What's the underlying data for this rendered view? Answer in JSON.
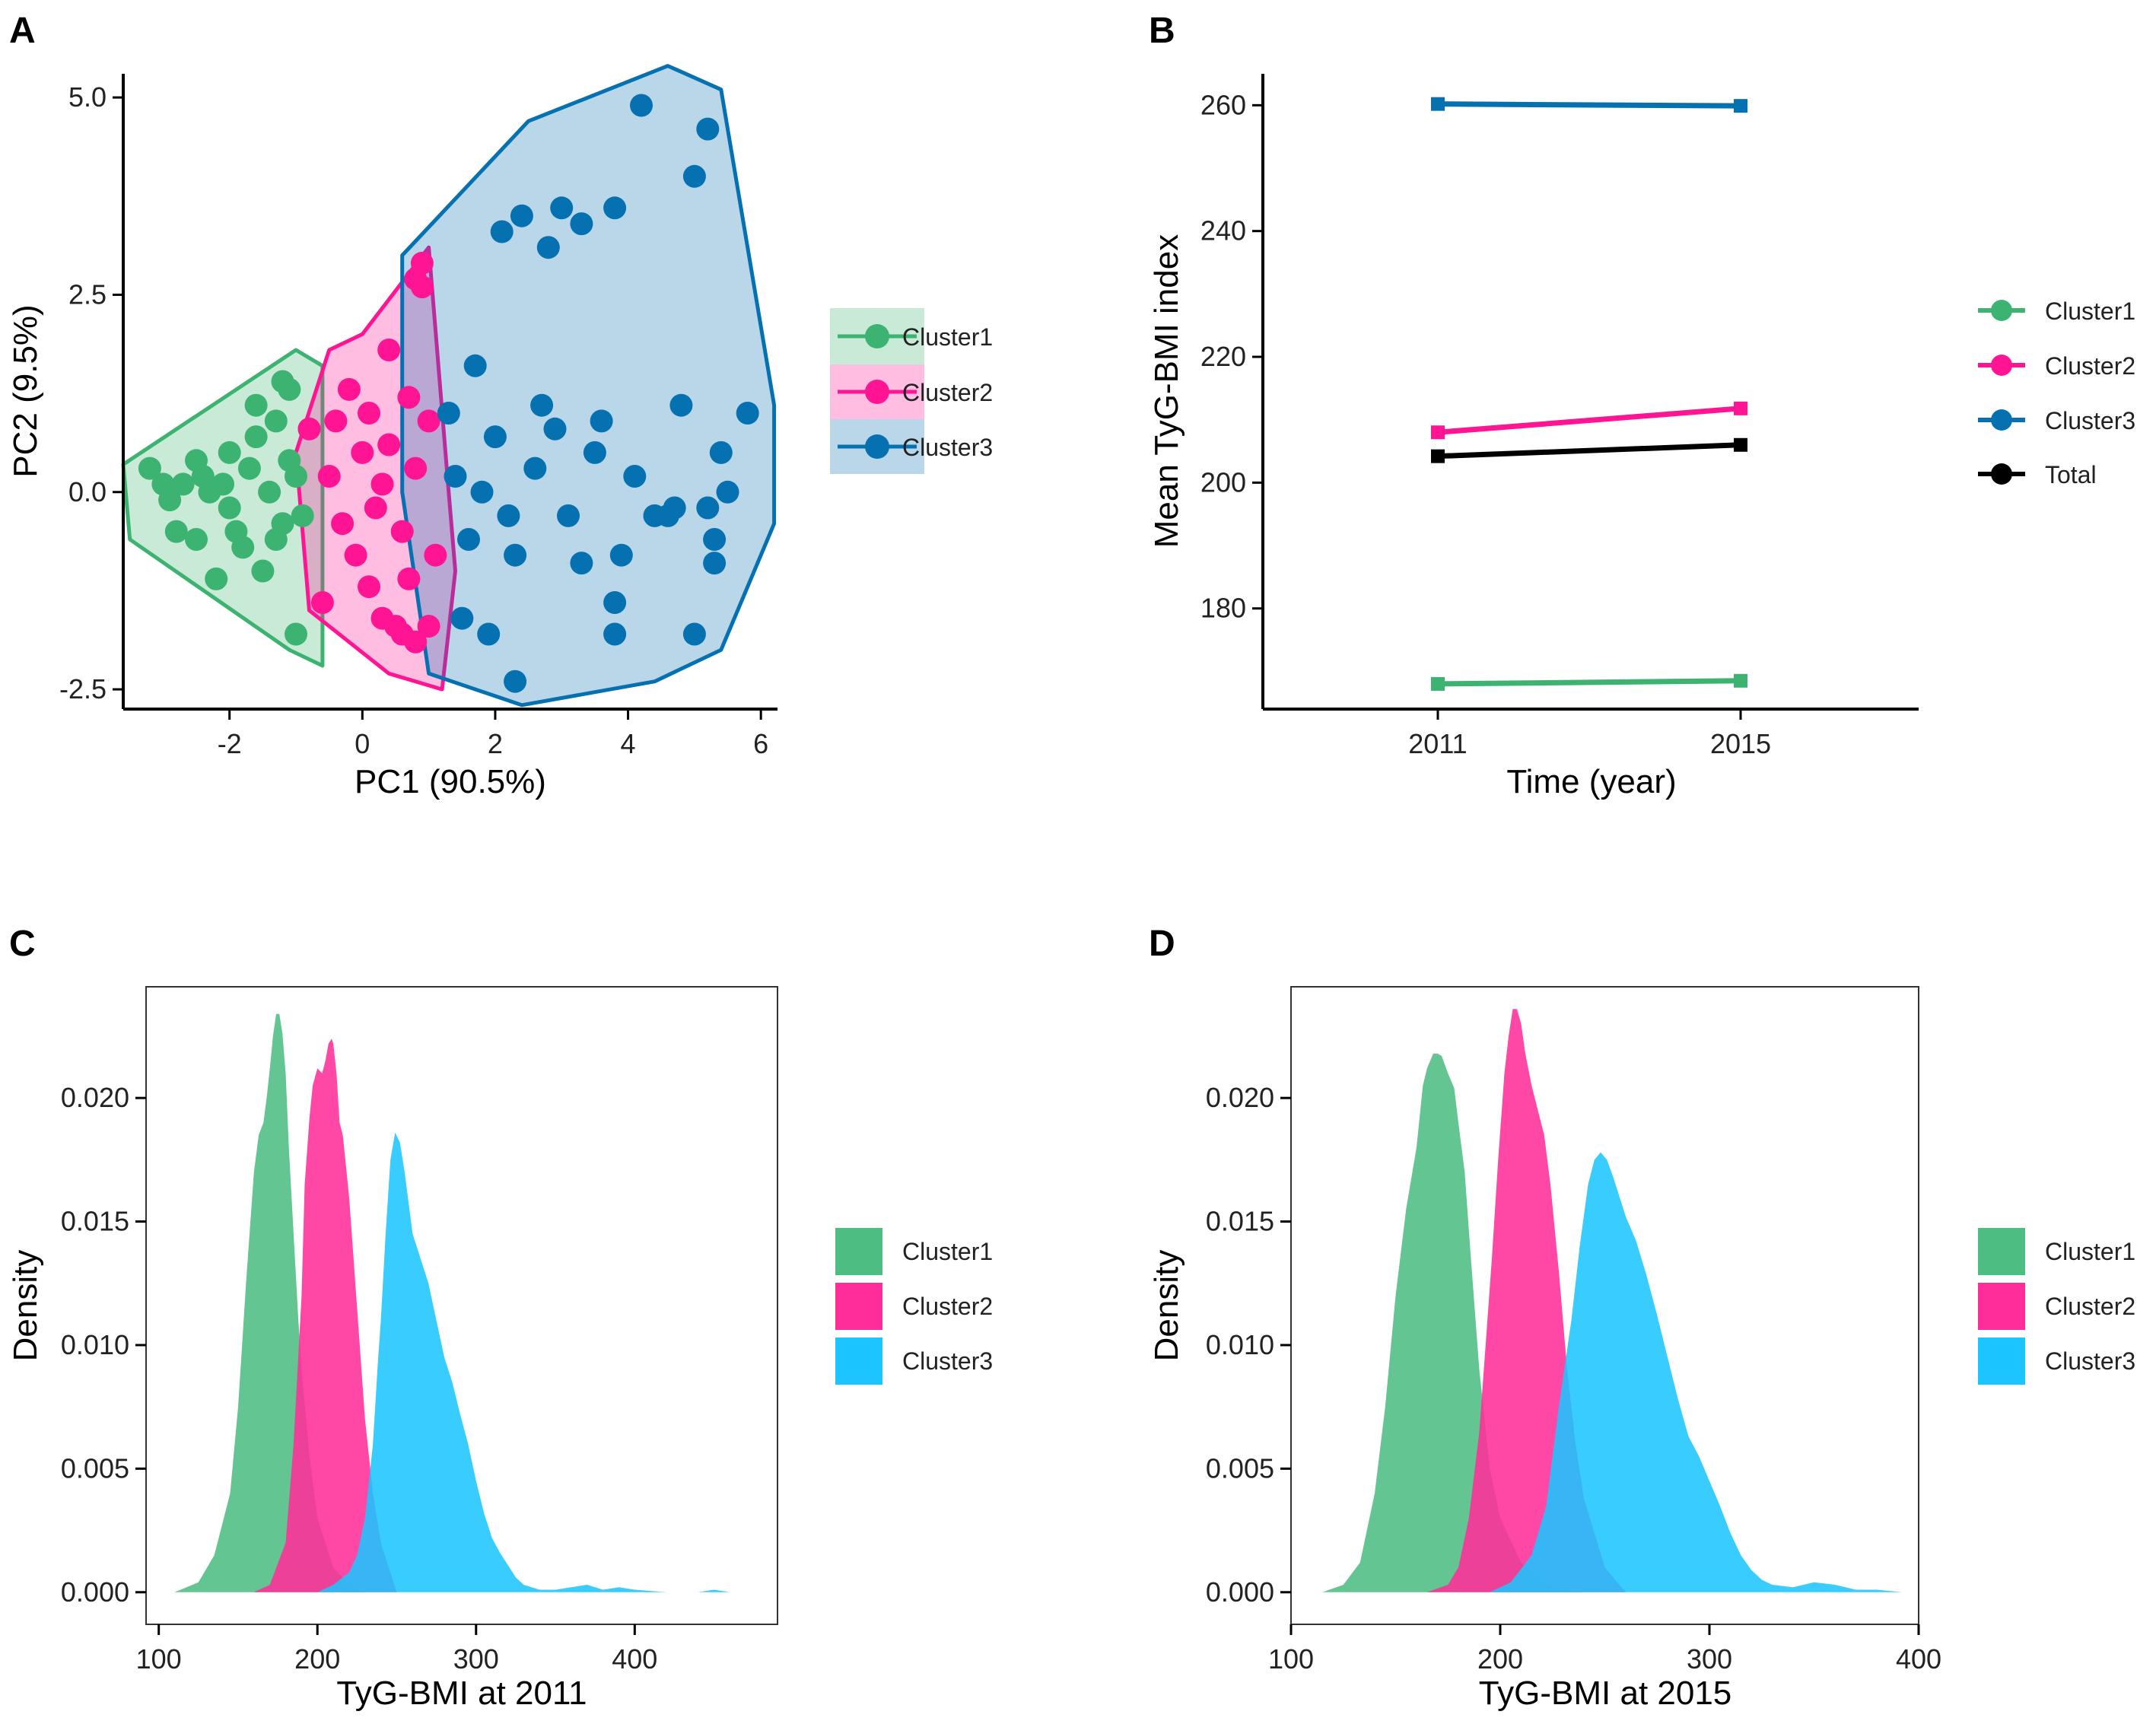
{
  "colors": {
    "cluster1": "#3cb371",
    "cluster2": "#ff1493",
    "cluster3": "#0571b0",
    "total": "#000000",
    "density1": "#4dbd82",
    "density2": "#ff2d9a",
    "density3": "#1cc5ff"
  },
  "legend": {
    "cluster1": "Cluster1",
    "cluster2": "Cluster2",
    "cluster3": "Cluster3",
    "total": "Total"
  },
  "chart_data": [
    {
      "panel": "A",
      "type": "scatter",
      "xlabel": "PC1 (90.5%)",
      "ylabel": "PC2 (9.5%)",
      "xlim": [
        -3.6,
        6.25
      ],
      "ylim": [
        -2.75,
        5.3
      ],
      "xticks": [
        "-2",
        "0",
        "2",
        "4",
        "6"
      ],
      "yticks": [
        "5.0",
        "2.5",
        "0.0",
        "-2.5"
      ],
      "legend_position": "right",
      "series": [
        {
          "name": "Cluster1",
          "hull": [
            [
              -3.6,
              0.35
            ],
            [
              -1.0,
              1.8
            ],
            [
              -0.6,
              1.6
            ],
            [
              -0.6,
              -2.2
            ],
            [
              -1.1,
              -2.0
            ],
            [
              -3.5,
              -0.6
            ]
          ],
          "points": [
            [
              -3.2,
              0.3
            ],
            [
              -3.0,
              0.1
            ],
            [
              -2.8,
              -0.5
            ],
            [
              -2.5,
              -0.6
            ],
            [
              -2.5,
              0.4
            ],
            [
              -2.2,
              -1.1
            ],
            [
              -2.0,
              0.5
            ],
            [
              -1.8,
              -0.7
            ],
            [
              -1.6,
              1.1
            ],
            [
              -1.5,
              -1.0
            ],
            [
              -1.3,
              0.9
            ],
            [
              -1.2,
              1.4
            ],
            [
              -1.1,
              1.3
            ],
            [
              -1.0,
              -1.8
            ],
            [
              -1.2,
              -0.4
            ],
            [
              -2.7,
              0.1
            ],
            [
              -2.3,
              0.0
            ],
            [
              -2.0,
              -0.2
            ],
            [
              -1.7,
              0.3
            ],
            [
              -1.4,
              0.0
            ],
            [
              -1.1,
              0.4
            ],
            [
              -0.9,
              -0.3
            ],
            [
              -2.9,
              -0.1
            ],
            [
              -2.4,
              0.2
            ],
            [
              -1.9,
              -0.5
            ],
            [
              -1.6,
              0.7
            ],
            [
              -1.3,
              -0.6
            ],
            [
              -0.8,
              0.8
            ],
            [
              -1.0,
              0.2
            ],
            [
              -2.1,
              0.1
            ]
          ]
        },
        {
          "name": "Cluster2",
          "hull": [
            [
              -1.0,
              0.5
            ],
            [
              -0.5,
              1.8
            ],
            [
              0.0,
              2.0
            ],
            [
              1.0,
              3.1
            ],
            [
              1.3,
              0.0
            ],
            [
              1.4,
              -1.0
            ],
            [
              1.2,
              -2.5
            ],
            [
              0.4,
              -2.3
            ],
            [
              -0.8,
              -1.5
            ]
          ],
          "points": [
            [
              -0.8,
              0.8
            ],
            [
              -0.6,
              -1.4
            ],
            [
              -0.2,
              1.3
            ],
            [
              0.1,
              -1.2
            ],
            [
              0.4,
              1.8
            ],
            [
              0.5,
              -1.7
            ],
            [
              0.7,
              1.2
            ],
            [
              0.8,
              2.7
            ],
            [
              0.9,
              2.9
            ],
            [
              0.9,
              2.6
            ],
            [
              0.3,
              -1.6
            ],
            [
              0.6,
              -1.8
            ],
            [
              0.8,
              -1.9
            ],
            [
              1.0,
              -1.7
            ],
            [
              -0.5,
              0.2
            ],
            [
              -0.3,
              -0.4
            ],
            [
              0.0,
              0.5
            ],
            [
              0.2,
              -0.2
            ],
            [
              0.4,
              0.6
            ],
            [
              0.6,
              -0.5
            ],
            [
              0.8,
              0.3
            ],
            [
              1.0,
              0.9
            ],
            [
              1.1,
              -0.8
            ],
            [
              0.1,
              1.0
            ],
            [
              -0.4,
              0.9
            ],
            [
              0.7,
              -1.1
            ],
            [
              0.3,
              0.1
            ],
            [
              -0.1,
              -0.8
            ]
          ]
        },
        {
          "name": "Cluster3",
          "hull": [
            [
              0.6,
              3.0
            ],
            [
              2.5,
              4.7
            ],
            [
              4.6,
              5.4
            ],
            [
              5.4,
              5.1
            ],
            [
              6.2,
              1.1
            ],
            [
              6.2,
              -0.4
            ],
            [
              5.4,
              -2.0
            ],
            [
              4.4,
              -2.4
            ],
            [
              2.4,
              -2.7
            ],
            [
              1.0,
              -2.3
            ],
            [
              0.6,
              0.0
            ]
          ],
          "points": [
            [
              4.2,
              4.9
            ],
            [
              5.2,
              4.6
            ],
            [
              5.0,
              4.0
            ],
            [
              2.4,
              3.5
            ],
            [
              3.0,
              3.6
            ],
            [
              3.3,
              3.4
            ],
            [
              3.8,
              3.6
            ],
            [
              2.1,
              3.3
            ],
            [
              2.8,
              3.1
            ],
            [
              1.7,
              1.6
            ],
            [
              4.8,
              1.1
            ],
            [
              5.8,
              1.0
            ],
            [
              5.4,
              0.5
            ],
            [
              5.5,
              0.0
            ],
            [
              5.2,
              -0.2
            ],
            [
              5.3,
              -0.6
            ],
            [
              5.3,
              -0.9
            ],
            [
              4.7,
              -0.2
            ],
            [
              3.9,
              -0.8
            ],
            [
              3.8,
              -1.4
            ],
            [
              3.8,
              -1.8
            ],
            [
              5.0,
              -1.8
            ],
            [
              2.3,
              -2.4
            ],
            [
              1.9,
              -1.8
            ],
            [
              1.5,
              -1.6
            ],
            [
              4.4,
              -0.3
            ],
            [
              3.5,
              0.5
            ],
            [
              2.7,
              1.1
            ],
            [
              2.0,
              0.7
            ],
            [
              1.4,
              0.2
            ],
            [
              1.6,
              -0.6
            ],
            [
              2.3,
              -0.8
            ],
            [
              3.1,
              -0.3
            ],
            [
              2.6,
              0.3
            ],
            [
              3.3,
              -0.9
            ],
            [
              4.1,
              0.2
            ],
            [
              1.8,
              0.0
            ],
            [
              2.9,
              0.8
            ],
            [
              1.3,
              1.0
            ],
            [
              4.6,
              -0.3
            ],
            [
              3.6,
              0.9
            ],
            [
              2.2,
              -0.3
            ]
          ]
        }
      ]
    },
    {
      "panel": "B",
      "type": "line",
      "xlabel": "Time (year)",
      "ylabel": "Mean TyG-BMI index",
      "categories": [
        "2011",
        "2015"
      ],
      "ylim": [
        164,
        265
      ],
      "yticks": [
        "260",
        "240",
        "220",
        "200",
        "180"
      ],
      "legend_position": "right",
      "series": [
        {
          "name": "Cluster1",
          "values": [
            168,
            168.5
          ]
        },
        {
          "name": "Cluster2",
          "values": [
            208,
            211.8
          ]
        },
        {
          "name": "Cluster3",
          "values": [
            260.2,
            259.9
          ]
        },
        {
          "name": "Total",
          "values": [
            204.2,
            206
          ]
        }
      ]
    },
    {
      "panel": "C",
      "type": "area",
      "xlabel": "TyG-BMI at 2011",
      "ylabel": "Density",
      "xlim": [
        92,
        490
      ],
      "ylim": [
        -0.0013,
        0.0245
      ],
      "xticks": [
        "100",
        "200",
        "300",
        "400"
      ],
      "yticks": [
        "0.020",
        "0.015",
        "0.010",
        "0.005",
        "0.000"
      ],
      "legend_position": "right",
      "series": [
        {
          "name": "Cluster1",
          "x": [
            110,
            125,
            135,
            145,
            150,
            155,
            160,
            163,
            166,
            168,
            170,
            172,
            174,
            176,
            178,
            180,
            182,
            185,
            188,
            190,
            195,
            200,
            210,
            220,
            230
          ],
          "values": [
            0,
            0.0004,
            0.0015,
            0.004,
            0.0075,
            0.0125,
            0.017,
            0.0185,
            0.019,
            0.02,
            0.0212,
            0.0225,
            0.0234,
            0.0234,
            0.0226,
            0.021,
            0.018,
            0.0145,
            0.011,
            0.009,
            0.0055,
            0.003,
            0.001,
            0.0003,
            0
          ]
        },
        {
          "name": "Cluster2",
          "x": [
            160,
            170,
            180,
            185,
            190,
            192,
            195,
            197,
            200,
            203,
            205,
            207,
            209,
            210,
            212,
            214,
            216,
            220,
            225,
            230,
            235,
            240,
            250
          ],
          "values": [
            0,
            0.0003,
            0.002,
            0.006,
            0.012,
            0.0165,
            0.0192,
            0.0205,
            0.0212,
            0.021,
            0.0215,
            0.0222,
            0.0224,
            0.0222,
            0.021,
            0.019,
            0.0185,
            0.016,
            0.0115,
            0.007,
            0.004,
            0.002,
            0
          ]
        },
        {
          "name": "Cluster3",
          "x": [
            200,
            210,
            220,
            225,
            230,
            235,
            238,
            240,
            243,
            246,
            249,
            252,
            255,
            258,
            260,
            265,
            270,
            275,
            280,
            285,
            290,
            295,
            300,
            305,
            310,
            315,
            320,
            325,
            330,
            340,
            350,
            360,
            370,
            380,
            390,
            400,
            420,
            440,
            450,
            460,
            475
          ],
          "values": [
            0,
            0.0003,
            0.0008,
            0.0015,
            0.003,
            0.006,
            0.0092,
            0.011,
            0.0145,
            0.0175,
            0.0186,
            0.0182,
            0.017,
            0.0155,
            0.0145,
            0.0135,
            0.0125,
            0.011,
            0.0095,
            0.0085,
            0.0072,
            0.006,
            0.0045,
            0.0032,
            0.0022,
            0.0016,
            0.0011,
            0.0006,
            0.0003,
            0.0001,
            0.0001,
            0.0002,
            0.0003,
            0.0001,
            0.0002,
            0.0001,
            0,
            0,
            0.0001,
            0,
            0
          ]
        }
      ]
    },
    {
      "panel": "D",
      "type": "area",
      "xlabel": "TyG-BMI at 2015",
      "ylabel": "Density",
      "xlim": [
        100,
        400
      ],
      "ylim": [
        -0.0013,
        0.0245
      ],
      "xticks": [
        "100",
        "200",
        "300",
        "400"
      ],
      "yticks": [
        "0.020",
        "0.015",
        "0.010",
        "0.005",
        "0.000"
      ],
      "legend_position": "right",
      "series": [
        {
          "name": "Cluster1",
          "x": [
            115,
            125,
            133,
            140,
            145,
            150,
            155,
            160,
            163,
            165,
            168,
            170,
            172,
            175,
            178,
            180,
            183,
            186,
            190,
            195,
            200,
            210,
            220,
            230,
            240
          ],
          "values": [
            0,
            0.0003,
            0.0012,
            0.004,
            0.0075,
            0.012,
            0.0155,
            0.018,
            0.0205,
            0.0212,
            0.0218,
            0.0218,
            0.0217,
            0.021,
            0.0204,
            0.019,
            0.017,
            0.0135,
            0.009,
            0.005,
            0.003,
            0.0012,
            0.0004,
            0.0001,
            0
          ]
        },
        {
          "name": "Cluster2",
          "x": [
            165,
            175,
            180,
            185,
            190,
            193,
            196,
            199,
            202,
            204,
            206,
            208,
            210,
            212,
            215,
            218,
            221,
            224,
            228,
            232,
            236,
            240,
            250,
            260
          ],
          "values": [
            0,
            0.0003,
            0.001,
            0.003,
            0.0065,
            0.01,
            0.0135,
            0.0175,
            0.021,
            0.0225,
            0.0236,
            0.0236,
            0.023,
            0.0218,
            0.0205,
            0.0195,
            0.0185,
            0.0165,
            0.013,
            0.009,
            0.006,
            0.0038,
            0.001,
            0
          ]
        },
        {
          "name": "Cluster3",
          "x": [
            195,
            205,
            215,
            222,
            228,
            234,
            238,
            242,
            245,
            248,
            251,
            254,
            257,
            260,
            265,
            270,
            275,
            280,
            285,
            290,
            295,
            300,
            305,
            310,
            315,
            320,
            325,
            330,
            340,
            350,
            360,
            370,
            380,
            392
          ],
          "values": [
            0,
            0.0004,
            0.0015,
            0.0035,
            0.0075,
            0.011,
            0.014,
            0.0165,
            0.0175,
            0.0178,
            0.0175,
            0.0168,
            0.016,
            0.0152,
            0.0142,
            0.0128,
            0.0112,
            0.0095,
            0.0078,
            0.0063,
            0.0055,
            0.0045,
            0.0035,
            0.0024,
            0.0015,
            0.0009,
            0.0005,
            0.0003,
            0.0002,
            0.0004,
            0.0003,
            0.0001,
            0.0001,
            0
          ]
        }
      ]
    }
  ]
}
